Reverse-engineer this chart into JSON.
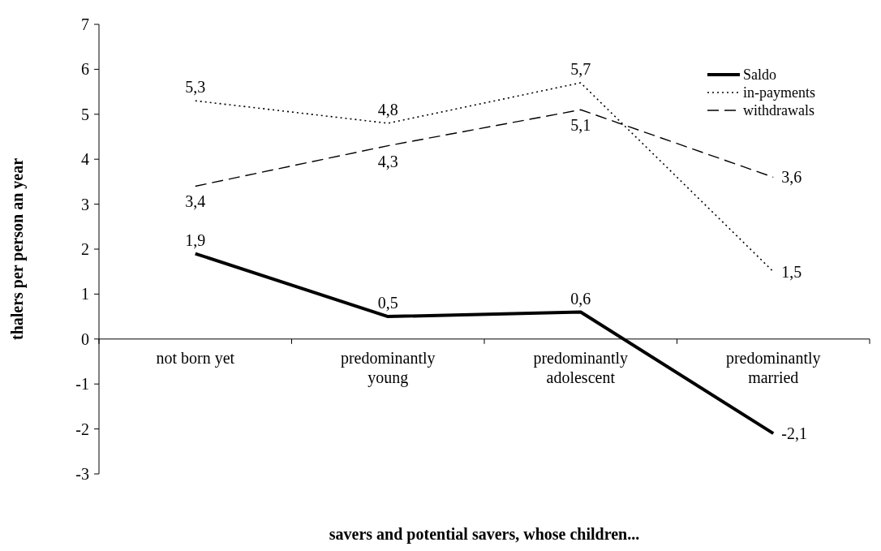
{
  "chart_data": {
    "type": "line",
    "xlabel": "savers and potential savers, whose children...",
    "ylabel": "thalers per person an year",
    "categories": [
      "not born yet",
      "predominantly young",
      "predominantly adolescent",
      "predominantly married"
    ],
    "series": [
      {
        "name": "Saldo",
        "color": "#000000",
        "line_style": "solid",
        "values": [
          1.9,
          0.5,
          0.6,
          -2.1
        ],
        "value_labels": [
          "1,9",
          "0,5",
          "0,6",
          "-2,1"
        ]
      },
      {
        "name": "in-payments",
        "color": "#000000",
        "line_style": "dotted",
        "values": [
          5.3,
          4.8,
          5.7,
          1.5
        ],
        "value_labels": [
          "5,3",
          "4,8",
          "5,7",
          "1,5"
        ]
      },
      {
        "name": "withdrawals",
        "color": "#000000",
        "line_style": "dashed",
        "values": [
          3.4,
          4.3,
          5.1,
          3.6
        ],
        "value_labels": [
          "3,4",
          "4,3",
          "5,1",
          "3,6"
        ]
      }
    ],
    "ylim": [
      -3,
      7
    ],
    "yticks": [
      -3,
      -2,
      -1,
      0,
      1,
      2,
      3,
      4,
      5,
      6,
      7
    ],
    "legend": "top right",
    "grid": false,
    "marker": "none"
  }
}
